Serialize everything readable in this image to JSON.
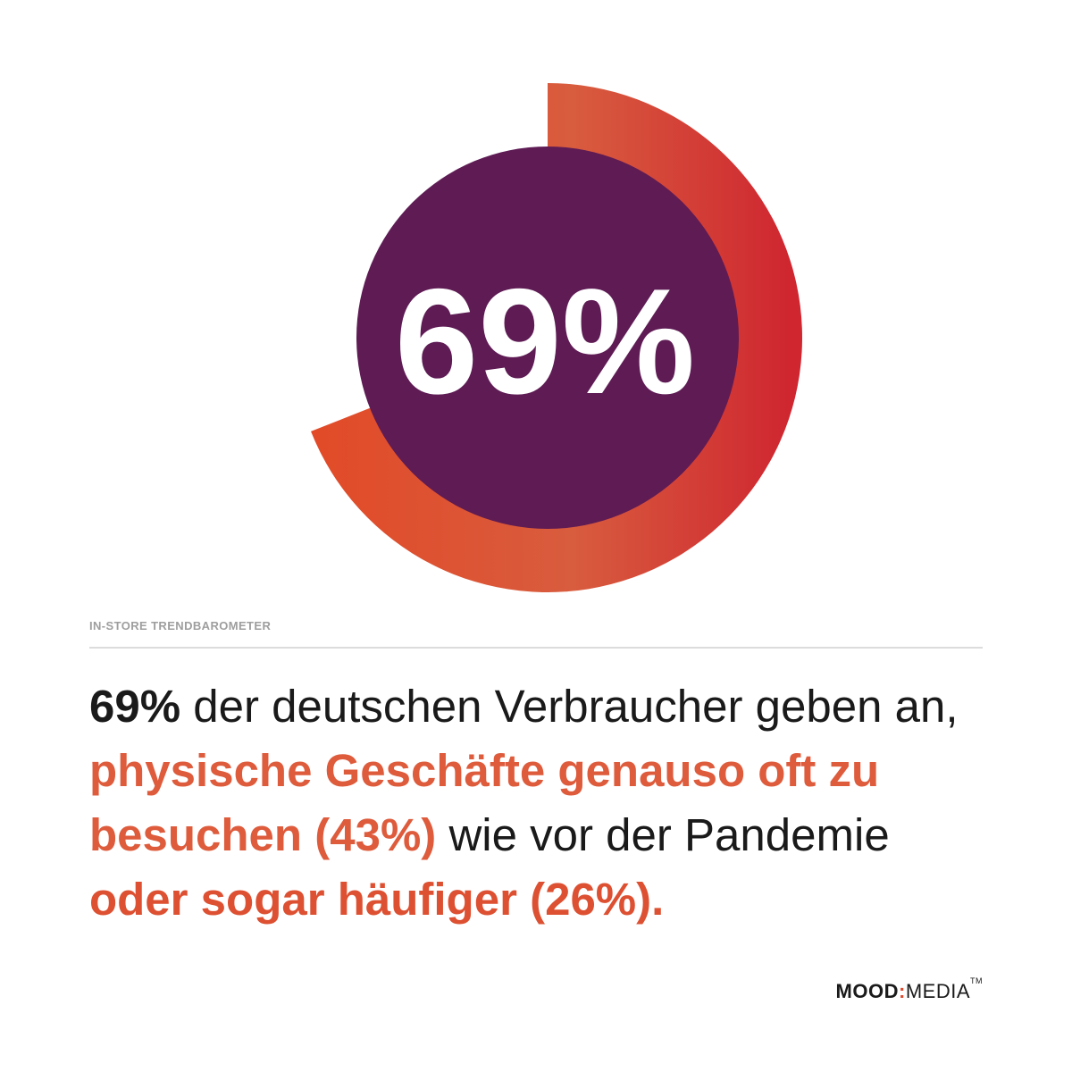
{
  "chart_data": {
    "type": "donut",
    "value": 69,
    "value_label": "69%",
    "colors": {
      "arc_start": "#e24a27",
      "arc_mid": "#d85c3e",
      "arc_end": "#cf2630",
      "center": "#5e1b54",
      "center_text": "#ffffff"
    }
  },
  "label": "IN-STORE TRENDBAROMETER",
  "headline": {
    "part1": "69%",
    "part2": " der deutschen Verbraucher geben an, ",
    "part3": "physische Geschäfte genauso oft zu besuchen (43%)",
    "part4": " wie vor der Pandemie ",
    "part5": "oder sogar häufiger (26%)."
  },
  "logo": {
    "mood": "MOOD",
    "colon": ":",
    "media": "MEDIA",
    "tm": "TM"
  }
}
